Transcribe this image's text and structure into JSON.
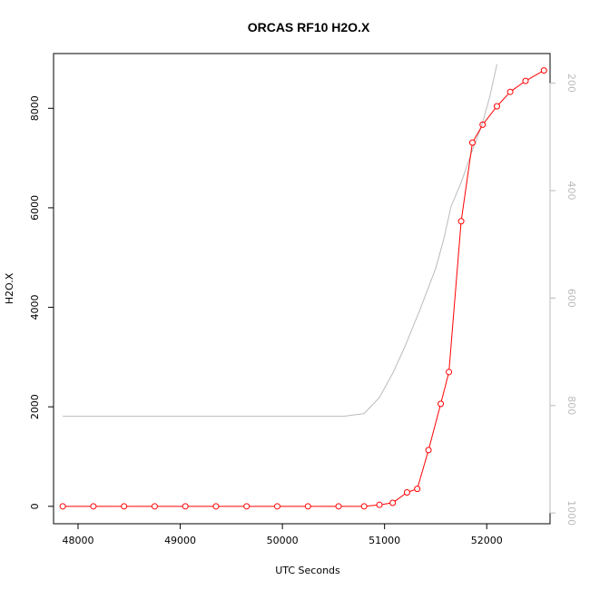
{
  "chart_data": {
    "type": "line",
    "title": "ORCAS RF10 H2O.X",
    "xlabel": "UTC Seconds",
    "ylabel": "H2O.X",
    "xlim": [
      47760,
      52620
    ],
    "ylim": [
      -350,
      9100
    ],
    "x_ticks": [
      48000,
      49000,
      50000,
      51000,
      52000
    ],
    "y_ticks": [
      0,
      2000,
      4000,
      6000,
      8000
    ],
    "y2_ticks": [
      200,
      400,
      600,
      800,
      1000
    ],
    "y2lim": [
      1020,
      145
    ],
    "grid": false,
    "colors": {
      "primary": "#ff0000",
      "secondary": "#bbbbbb",
      "axis": "#000000"
    },
    "series": [
      {
        "axis": "left",
        "style": "line-with-open-circles",
        "x": [
          47850,
          48150,
          48450,
          48750,
          49050,
          49350,
          49650,
          49950,
          50250,
          50550,
          50800,
          50950,
          51080,
          51220,
          51320,
          51430,
          51550,
          51630,
          51750,
          51860,
          51960,
          52100,
          52230,
          52380,
          52560
        ],
        "values": [
          0,
          0,
          0,
          0,
          0,
          0,
          0,
          0,
          0,
          0,
          0,
          30,
          70,
          280,
          350,
          1130,
          2060,
          2700,
          5730,
          7310,
          7670,
          8040,
          8330,
          8550,
          8760
        ]
      },
      {
        "axis": "right",
        "style": "line",
        "x": [
          47850,
          48500,
          49000,
          49500,
          50000,
          50400,
          50600,
          50800,
          50950,
          51080,
          51200,
          51350,
          51500,
          51580,
          51650,
          51750,
          51850,
          51950,
          52030,
          52100
        ],
        "values": [
          820,
          820,
          820,
          820,
          820,
          820,
          820,
          815,
          785,
          740,
          690,
          620,
          545,
          490,
          430,
          385,
          330,
          280,
          225,
          165
        ]
      }
    ]
  }
}
